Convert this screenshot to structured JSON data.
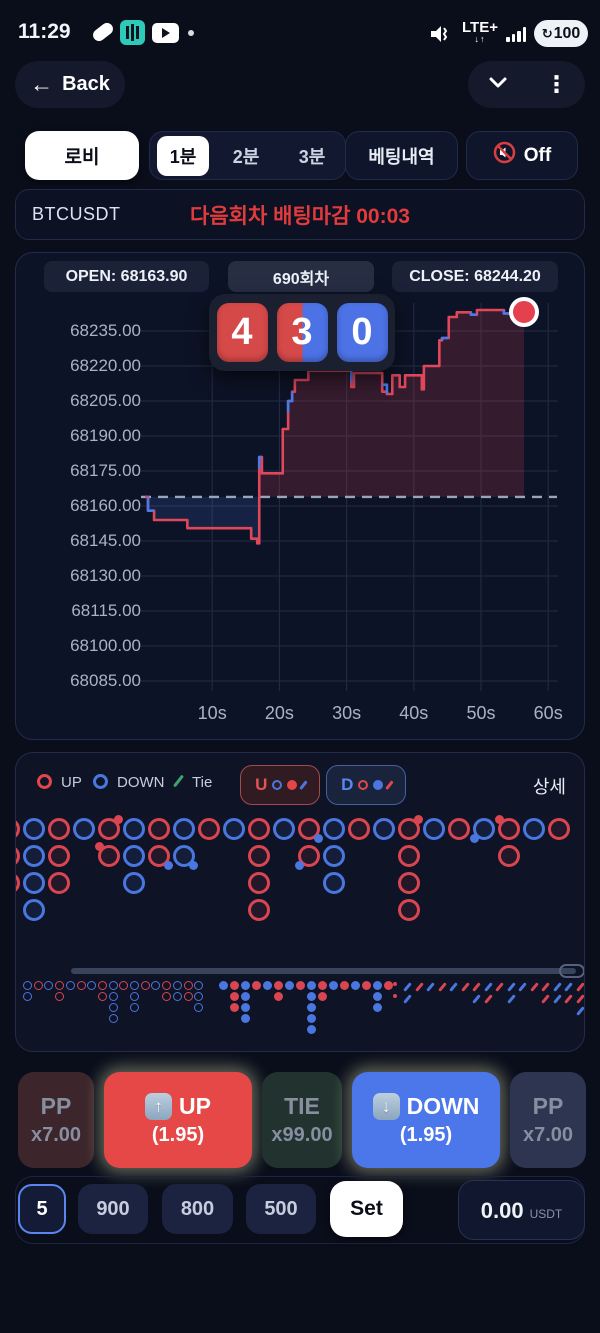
{
  "status_bar": {
    "time": "11:29",
    "network_label": "LTE+",
    "battery_level": "100"
  },
  "header": {
    "back_label": "Back"
  },
  "tabs": {
    "lobby": "로비",
    "one_min": "1분",
    "two_min": "2분",
    "three_min": "3분",
    "history": "베팅내역",
    "sound_off": "Off"
  },
  "info_bar": {
    "symbol": "BTCUSDT",
    "countdown_notice": "다음회차 배팅마감 00:03"
  },
  "chart_header": {
    "open_label": "OPEN: 68163.90",
    "round_label": "690회차",
    "close_label": "CLOSE: 68244.20"
  },
  "countdown": {
    "digits": [
      "4",
      "3",
      "0"
    ]
  },
  "chart_data": {
    "type": "line",
    "title": "BTCUSDT round 690 live price (1 min)",
    "open_price": 68163.9,
    "close_price": 68244.2,
    "x_ticks": [
      "10s",
      "20s",
      "30s",
      "40s",
      "50s",
      "60s"
    ],
    "y_ticks": [
      "68235.00",
      "68220.00",
      "68205.00",
      "68190.00",
      "68175.00",
      "68160.00",
      "68145.00",
      "68130.00",
      "68115.00",
      "68100.00",
      "68085.00"
    ],
    "x_range_seconds": [
      0,
      62
    ],
    "y_range": [
      68080,
      68248
    ],
    "grid": true,
    "up_color": "#e0485a",
    "down_color": "#4d79e8",
    "open_line_color": "#9aa5ba",
    "points_sec_price": [
      [
        0,
        68163.9
      ],
      [
        0.45,
        68163.9
      ],
      [
        0.45,
        68158
      ],
      [
        1.35,
        68158
      ],
      [
        1.35,
        68154
      ],
      [
        6.3,
        68154
      ],
      [
        6.3,
        68150.5
      ],
      [
        15.8,
        68150.5
      ],
      [
        15.8,
        68146
      ],
      [
        16.7,
        68146
      ],
      [
        16.7,
        68144
      ],
      [
        17,
        68144
      ],
      [
        17,
        68181
      ],
      [
        17.4,
        68181
      ],
      [
        17.4,
        68174
      ],
      [
        20.5,
        68174
      ],
      [
        20.5,
        68193
      ],
      [
        21.3,
        68193
      ],
      [
        21.3,
        68205
      ],
      [
        21.9,
        68205
      ],
      [
        21.9,
        68209
      ],
      [
        22.3,
        68209
      ],
      [
        22.3,
        68214
      ],
      [
        24.3,
        68214
      ],
      [
        24.3,
        68218
      ],
      [
        30.7,
        68218
      ],
      [
        30.7,
        68211
      ],
      [
        31.1,
        68211
      ],
      [
        31.1,
        68217
      ],
      [
        35.3,
        68217
      ],
      [
        35.3,
        68209
      ],
      [
        36,
        68209
      ],
      [
        36,
        68208
      ],
      [
        36.8,
        68208
      ],
      [
        36.8,
        68216
      ],
      [
        37.9,
        68216
      ],
      [
        37.9,
        68211
      ],
      [
        38.7,
        68211
      ],
      [
        38.7,
        68216
      ],
      [
        41.2,
        68216
      ],
      [
        41.2,
        68210
      ],
      [
        41.5,
        68210
      ],
      [
        41.5,
        68220
      ],
      [
        43.8,
        68220
      ],
      [
        43.8,
        68231
      ],
      [
        44.2,
        68231
      ],
      [
        44.2,
        68232
      ],
      [
        45.2,
        68232
      ],
      [
        45.2,
        68241
      ],
      [
        46.4,
        68241
      ],
      [
        46.4,
        68243
      ],
      [
        48.5,
        68243
      ],
      [
        48.5,
        68242
      ],
      [
        49.4,
        68242
      ],
      [
        49.4,
        68244
      ],
      [
        53.4,
        68244
      ],
      [
        53.4,
        68242.5
      ],
      [
        54.5,
        68242.5
      ],
      [
        54.5,
        68244
      ],
      [
        56.4,
        68244.2
      ]
    ],
    "blue_overlay": [
      [
        [
          0.45,
          68163.9
        ],
        [
          0.45,
          68158
        ],
        [
          1.35,
          68158
        ]
      ],
      [
        [
          17,
          68176
        ],
        [
          17,
          68181
        ],
        [
          17.4,
          68181
        ]
      ],
      [
        [
          21.3,
          68200
        ],
        [
          21.3,
          68205
        ],
        [
          21.9,
          68205
        ],
        [
          21.9,
          68209
        ]
      ],
      [
        [
          30.7,
          68218
        ],
        [
          30.7,
          68213
        ]
      ],
      [
        [
          35.3,
          68212
        ],
        [
          36,
          68212
        ],
        [
          36,
          68208
        ]
      ],
      [
        [
          44.2,
          68231
        ],
        [
          44.2,
          68232
        ],
        [
          45.2,
          68232
        ]
      ],
      [
        [
          48.5,
          68243
        ],
        [
          48.5,
          68242
        ],
        [
          49.4,
          68242
        ]
      ],
      [
        [
          53.4,
          68244
        ],
        [
          53.4,
          68242.5
        ],
        [
          54.5,
          68242.5
        ]
      ]
    ]
  },
  "legend": {
    "up": "UP",
    "down": "DOWN",
    "tie": "Tie",
    "u_button": "U",
    "d_button": "D",
    "detail": "상세"
  },
  "roads": {
    "big": [
      [
        "R",
        "R",
        "R"
      ],
      [
        "B",
        "B",
        "B",
        "B"
      ],
      [
        "R",
        "R",
        "R"
      ],
      [
        "B"
      ],
      [
        {
          "c": "R",
          "dot": "r-tr"
        },
        {
          "c": "R",
          "dot": "r-tl"
        }
      ],
      [
        "B",
        "B",
        "B"
      ],
      [
        "R",
        {
          "c": "R",
          "dot": "b-br"
        }
      ],
      [
        "B",
        {
          "c": "B",
          "dot": "b-br"
        }
      ],
      [
        "R"
      ],
      [
        "B"
      ],
      [
        "R",
        "R",
        "R",
        "R"
      ],
      [
        "B"
      ],
      [
        {
          "c": "R",
          "dot": "b-br"
        },
        {
          "c": "R",
          "dot": "b-bl"
        }
      ],
      [
        "B",
        "B",
        "B"
      ],
      [
        "R"
      ],
      [
        "B"
      ],
      [
        {
          "c": "R",
          "dot": "r-tr"
        },
        "R",
        "R",
        "R"
      ],
      [
        "B"
      ],
      [
        "R"
      ],
      [
        {
          "c": "B",
          "dot": "b-bl"
        }
      ],
      [
        {
          "c": "R",
          "dot": "r-tl"
        },
        "R"
      ],
      [
        "B"
      ],
      [
        "R"
      ]
    ],
    "bead_left": [
      [
        "B",
        "B"
      ],
      [
        "R"
      ],
      [
        "B"
      ],
      [
        "R",
        "R"
      ],
      [
        "B"
      ],
      [
        "R"
      ],
      [
        "B"
      ],
      [
        "R",
        "R"
      ],
      [
        "B",
        "B",
        "B",
        "B"
      ],
      [
        "R"
      ],
      [
        "B",
        "B",
        "B"
      ],
      [
        "R"
      ],
      [
        "B"
      ],
      [
        "R",
        "R"
      ],
      [
        "B",
        "B"
      ],
      [
        "R",
        "R"
      ],
      [
        "B",
        "B",
        "B"
      ]
    ],
    "bead_mid": [
      [
        "B"
      ],
      [
        "R",
        "R",
        "R"
      ],
      [
        "B",
        "B",
        "B",
        "B"
      ],
      [
        "R"
      ],
      [
        "B"
      ],
      [
        "R",
        "R"
      ],
      [
        "B"
      ],
      [
        "R"
      ],
      [
        "B",
        "B",
        "B",
        "B",
        "B"
      ],
      [
        "R",
        "R"
      ],
      [
        "B"
      ],
      [
        "R"
      ],
      [
        "B"
      ],
      [
        "R"
      ],
      [
        "B",
        "B",
        "B"
      ],
      [
        "R"
      ]
    ],
    "slash_row1": [
      "B",
      "R",
      "B",
      "R",
      "B",
      "R",
      "R",
      "B",
      "R",
      "B",
      "B",
      "R",
      "R",
      "B",
      "B",
      "R",
      "B"
    ],
    "slash_row2": [
      {
        "i": 0,
        "c": "B"
      },
      {
        "i": 6,
        "c": "B"
      },
      {
        "i": 7,
        "c": "R"
      },
      {
        "i": 9,
        "c": "B"
      },
      {
        "i": 12,
        "c": "R"
      },
      {
        "i": 13,
        "c": "B"
      },
      {
        "i": 14,
        "c": "R"
      },
      {
        "i": 15,
        "c": "R"
      },
      {
        "i": 16,
        "c": "B"
      }
    ],
    "slash_row3": [
      {
        "i": 15,
        "c": "B"
      }
    ],
    "pre_marks": [
      "R",
      "R"
    ]
  },
  "bet_buttons": {
    "pp_left": {
      "title": "PP",
      "multiplier": "x7.00"
    },
    "up": {
      "title": "UP",
      "multiplier": "(1.95)"
    },
    "tie": {
      "title": "TIE",
      "multiplier": "x99.00"
    },
    "down": {
      "title": "DOWN",
      "multiplier": "(1.95)"
    },
    "pp_right": {
      "title": "PP",
      "multiplier": "x7.00"
    }
  },
  "amount_bar": {
    "selected_chip": "5",
    "chips": [
      "900",
      "800",
      "500"
    ],
    "set_label": "Set",
    "balance": "0.00",
    "currency": "USDT"
  },
  "colors": {
    "up_red": "#e0485a",
    "down_blue": "#4d79e8",
    "tie_green": "#3da56b",
    "alert_red": "#e23b3b"
  }
}
